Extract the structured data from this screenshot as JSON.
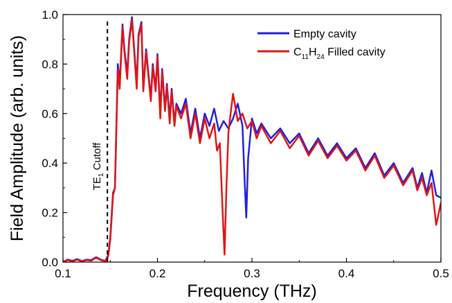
{
  "chart_data": {
    "type": "line",
    "xlabel": "Frequency (THz)",
    "ylabel": "Field Amplitude (arb. units)",
    "xlim": [
      0.1,
      0.5
    ],
    "ylim": [
      0.0,
      1.0
    ],
    "xticks": [
      "0.1",
      "0.2",
      "0.3",
      "0.4",
      "0.5"
    ],
    "yticks": [
      "0.0",
      "0.2",
      "0.4",
      "0.6",
      "0.8",
      "1.0"
    ],
    "grid": false,
    "legend_position": "top-right",
    "cutoff": {
      "x": 0.147,
      "label_main": "TE",
      "label_sub": "1",
      "label_rest": " Cutoff"
    },
    "series": [
      {
        "name": "Empty cavity",
        "legend_label": "Empty cavity",
        "color": "#1f1fe0",
        "x": [
          0.1,
          0.105,
          0.11,
          0.115,
          0.12,
          0.125,
          0.13,
          0.135,
          0.14,
          0.145,
          0.148,
          0.15,
          0.153,
          0.155,
          0.158,
          0.16,
          0.163,
          0.165,
          0.168,
          0.17,
          0.173,
          0.175,
          0.178,
          0.18,
          0.183,
          0.185,
          0.188,
          0.19,
          0.193,
          0.195,
          0.198,
          0.2,
          0.203,
          0.205,
          0.208,
          0.21,
          0.213,
          0.215,
          0.218,
          0.22,
          0.225,
          0.23,
          0.235,
          0.24,
          0.245,
          0.25,
          0.255,
          0.26,
          0.265,
          0.27,
          0.275,
          0.28,
          0.285,
          0.29,
          0.292,
          0.294,
          0.296,
          0.3,
          0.305,
          0.31,
          0.32,
          0.33,
          0.34,
          0.35,
          0.36,
          0.37,
          0.38,
          0.39,
          0.4,
          0.41,
          0.42,
          0.43,
          0.44,
          0.45,
          0.46,
          0.47,
          0.475,
          0.48,
          0.485,
          0.49,
          0.495,
          0.5
        ],
        "y": [
          0.0,
          0.01,
          0.005,
          0.012,
          0.004,
          0.01,
          0.008,
          0.02,
          0.01,
          0.005,
          0.03,
          0.1,
          0.28,
          0.3,
          0.8,
          0.72,
          0.96,
          0.86,
          0.76,
          0.9,
          0.99,
          0.88,
          0.72,
          0.92,
          0.97,
          0.7,
          0.86,
          0.78,
          0.66,
          0.8,
          0.7,
          0.84,
          0.6,
          0.78,
          0.62,
          0.72,
          0.58,
          0.7,
          0.56,
          0.64,
          0.6,
          0.66,
          0.52,
          0.62,
          0.5,
          0.6,
          0.55,
          0.62,
          0.53,
          0.57,
          0.54,
          0.58,
          0.64,
          0.55,
          0.35,
          0.18,
          0.42,
          0.58,
          0.52,
          0.56,
          0.5,
          0.54,
          0.48,
          0.52,
          0.44,
          0.5,
          0.43,
          0.48,
          0.42,
          0.46,
          0.38,
          0.44,
          0.35,
          0.4,
          0.32,
          0.38,
          0.3,
          0.36,
          0.28,
          0.37,
          0.27,
          0.26
        ]
      },
      {
        "name": "C11H24 Filled cavity",
        "legend_label": {
          "main": "C",
          "sub1": "11",
          "mid": "H",
          "sub2": "24",
          "rest": " Filled cavity"
        },
        "color": "#e01515",
        "x": [
          0.1,
          0.105,
          0.11,
          0.115,
          0.12,
          0.125,
          0.13,
          0.135,
          0.14,
          0.145,
          0.148,
          0.15,
          0.153,
          0.155,
          0.158,
          0.16,
          0.163,
          0.165,
          0.168,
          0.17,
          0.173,
          0.175,
          0.178,
          0.18,
          0.183,
          0.185,
          0.188,
          0.19,
          0.193,
          0.195,
          0.198,
          0.2,
          0.203,
          0.205,
          0.208,
          0.21,
          0.213,
          0.215,
          0.218,
          0.22,
          0.225,
          0.23,
          0.235,
          0.24,
          0.245,
          0.25,
          0.255,
          0.26,
          0.263,
          0.266,
          0.269,
          0.271,
          0.273,
          0.275,
          0.278,
          0.28,
          0.285,
          0.29,
          0.295,
          0.3,
          0.305,
          0.31,
          0.32,
          0.33,
          0.34,
          0.35,
          0.36,
          0.37,
          0.38,
          0.39,
          0.4,
          0.41,
          0.42,
          0.43,
          0.44,
          0.45,
          0.46,
          0.47,
          0.475,
          0.48,
          0.485,
          0.49,
          0.495,
          0.5
        ],
        "y": [
          0.0,
          0.008,
          0.003,
          0.01,
          0.002,
          0.008,
          0.006,
          0.018,
          0.008,
          0.004,
          0.025,
          0.09,
          0.27,
          0.3,
          0.78,
          0.7,
          0.95,
          0.85,
          0.74,
          0.89,
          0.98,
          0.87,
          0.7,
          0.91,
          0.96,
          0.69,
          0.85,
          0.77,
          0.65,
          0.79,
          0.69,
          0.83,
          0.58,
          0.77,
          0.61,
          0.71,
          0.56,
          0.69,
          0.55,
          0.63,
          0.58,
          0.64,
          0.5,
          0.6,
          0.48,
          0.58,
          0.5,
          0.56,
          0.45,
          0.48,
          0.2,
          0.03,
          0.3,
          0.52,
          0.62,
          0.68,
          0.57,
          0.6,
          0.54,
          0.57,
          0.5,
          0.55,
          0.48,
          0.53,
          0.46,
          0.51,
          0.43,
          0.49,
          0.42,
          0.47,
          0.41,
          0.45,
          0.37,
          0.43,
          0.34,
          0.39,
          0.31,
          0.37,
          0.29,
          0.34,
          0.27,
          0.32,
          0.15,
          0.24
        ]
      }
    ]
  }
}
